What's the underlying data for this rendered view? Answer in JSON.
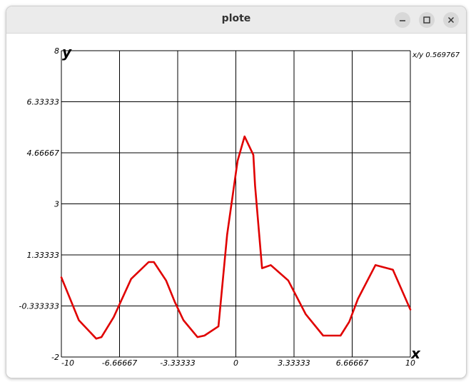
{
  "window": {
    "title": "plote",
    "buttons": {
      "minimize": "–",
      "maximize": "□",
      "close": "×"
    }
  },
  "chart_data": {
    "type": "line",
    "x_label": "x",
    "y_label": "y",
    "xlim": [
      -10,
      10
    ],
    "ylim": [
      -2,
      8
    ],
    "x_ticks": [
      "-10",
      "-6.66667",
      "-3.33333",
      "0",
      "3.33333",
      "6.66667",
      "10"
    ],
    "y_ticks": [
      "-2",
      "-0.333333",
      "1.33333",
      "3",
      "4.66667",
      "6.33333",
      "8"
    ],
    "grid": true,
    "ratio_text": "x/y 0.569767",
    "line_color": "#e00000",
    "series": [
      {
        "x": [
          -10,
          -9,
          -8,
          -7.7,
          -7,
          -6,
          -5,
          -4.7,
          -4,
          -3.5,
          -3,
          -2.2,
          -1.8,
          -1,
          -0.5,
          0.1,
          0.5,
          1,
          1.1,
          1.5,
          2,
          3,
          4,
          5,
          6,
          6.5,
          7,
          8,
          9,
          10
        ],
        "y": [
          0.6,
          -0.8,
          -1.4,
          -1.35,
          -0.7,
          0.55,
          1.1,
          1.1,
          0.5,
          -0.2,
          -0.8,
          -1.35,
          -1.3,
          -1.0,
          2.0,
          4.4,
          5.2,
          4.6,
          3.6,
          0.9,
          1.0,
          0.5,
          -0.6,
          -1.3,
          -1.3,
          -0.85,
          -0.1,
          1.0,
          0.85,
          -0.45
        ]
      }
    ]
  }
}
